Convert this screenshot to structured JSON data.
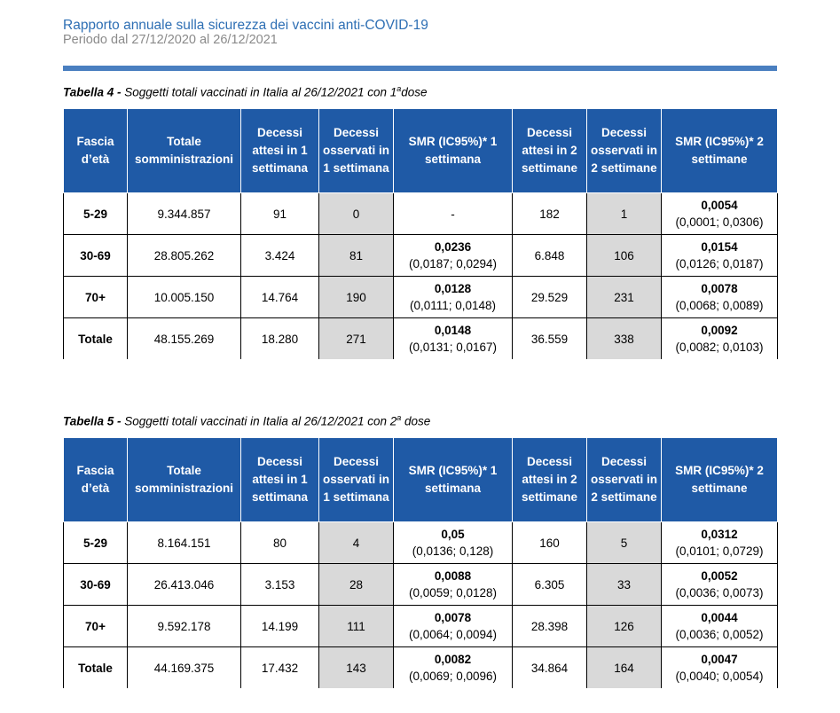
{
  "header": {
    "title": "Rapporto annuale sulla sicurezza dei vaccini anti-COVID-19",
    "subtitle": "Periodo dal 27/12/2020 al 26/12/2021"
  },
  "columns": [
    "Fascia d’età",
    "Totale somministrazioni",
    "Decessi attesi in 1 settimana",
    "Decessi osservati in 1 settimana",
    "SMR (IC95%)* 1 settimana",
    "Decessi attesi in 2 settimane",
    "Decessi osservati in 2 settimane",
    "SMR (IC95%)* 2 settimane"
  ],
  "tables": [
    {
      "caption_bold": "Tabella 4 -",
      "caption_text": " Soggetti totali vaccinati in Italia al 26/12/2021 con 1",
      "caption_sup": "a",
      "caption_end": "dose",
      "rows": [
        {
          "fascia": "5-29",
          "totale": "9.344.857",
          "attesi1": "91",
          "osservati1": "0",
          "smr1_val": "-",
          "smr1_ci": "",
          "attesi2": "182",
          "osservati2": "1",
          "smr2_val": "0,0054",
          "smr2_ci": "(0,0001; 0,0306)"
        },
        {
          "fascia": "30-69",
          "totale": "28.805.262",
          "attesi1": "3.424",
          "osservati1": "81",
          "smr1_val": "0,0236",
          "smr1_ci": "(0,0187; 0,0294)",
          "attesi2": "6.848",
          "osservati2": "106",
          "smr2_val": "0,0154",
          "smr2_ci": "(0,0126; 0,0187)"
        },
        {
          "fascia": "70+",
          "totale": "10.005.150",
          "attesi1": "14.764",
          "osservati1": "190",
          "smr1_val": "0,0128",
          "smr1_ci": "(0,0111; 0,0148)",
          "attesi2": "29.529",
          "osservati2": "231",
          "smr2_val": "0,0078",
          "smr2_ci": "(0,0068; 0,0089)"
        },
        {
          "fascia": "Totale",
          "totale": "48.155.269",
          "attesi1": "18.280",
          "osservati1": "271",
          "smr1_val": "0,0148",
          "smr1_ci": "(0,0131; 0,0167)",
          "attesi2": "36.559",
          "osservati2": "338",
          "smr2_val": "0,0092",
          "smr2_ci": "(0,0082; 0,0103)"
        }
      ]
    },
    {
      "caption_bold": "Tabella 5 -",
      "caption_text": " Soggetti totali vaccinati in Italia al 26/12/2021 con 2",
      "caption_sup": "a",
      "caption_end": " dose",
      "rows": [
        {
          "fascia": "5-29",
          "totale": "8.164.151",
          "attesi1": "80",
          "osservati1": "4",
          "smr1_val": "0,05",
          "smr1_ci": "(0,0136; 0,128)",
          "attesi2": "160",
          "osservati2": "5",
          "smr2_val": "0,0312",
          "smr2_ci": "(0,0101; 0,0729)"
        },
        {
          "fascia": "30-69",
          "totale": "26.413.046",
          "attesi1": "3.153",
          "osservati1": "28",
          "smr1_val": "0,0088",
          "smr1_ci": "(0,0059; 0,0128)",
          "attesi2": "6.305",
          "osservati2": "33",
          "smr2_val": "0,0052",
          "smr2_ci": "(0,0036; 0,0073)"
        },
        {
          "fascia": "70+",
          "totale": "9.592.178",
          "attesi1": "14.199",
          "osservati1": "111",
          "smr1_val": "0,0078",
          "smr1_ci": "(0,0064; 0,0094)",
          "attesi2": "28.398",
          "osservati2": "126",
          "smr2_val": "0,0044",
          "smr2_ci": "(0,0036; 0,0052)"
        },
        {
          "fascia": "Totale",
          "totale": "44.169.375",
          "attesi1": "17.432",
          "osservati1": "143",
          "smr1_val": "0,0082",
          "smr1_ci": "(0,0069; 0,0096)",
          "attesi2": "34.864",
          "osservati2": "164",
          "smr2_val": "0,0047",
          "smr2_ci": "(0,0040; 0,0054)"
        }
      ]
    }
  ]
}
